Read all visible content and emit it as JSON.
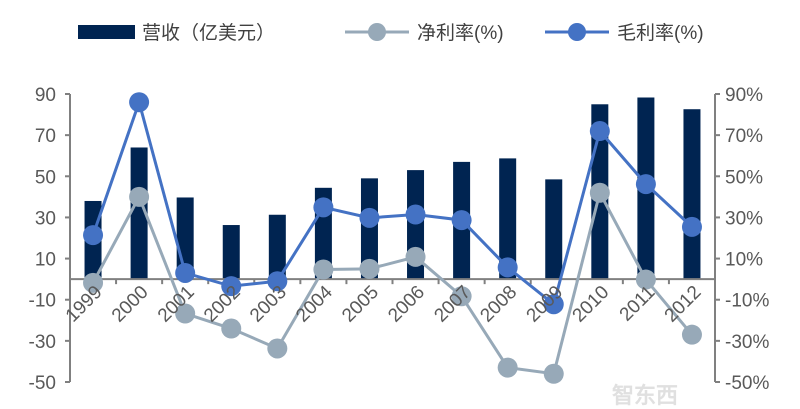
{
  "chart_data": {
    "type": "bar+line",
    "categories": [
      "1999",
      "2000",
      "2001",
      "2002",
      "2003",
      "2004",
      "2005",
      "2006",
      "2007",
      "2008",
      "2009",
      "2010",
      "2011",
      "2012"
    ],
    "series": [
      {
        "name": "营收（亿美元）",
        "kind": "bar",
        "axis": "left",
        "color": "#002451",
        "values": [
          38,
          64,
          39.7,
          26.3,
          31.3,
          44.4,
          49,
          53,
          57,
          58.7,
          48.5,
          85,
          88.3,
          82.6
        ]
      },
      {
        "name": "净利率(%)",
        "kind": "line",
        "axis": "right",
        "color": "#97a9b8",
        "values": [
          -1.8,
          40,
          -16.7,
          -24,
          -33.7,
          4.7,
          5,
          10.8,
          -8.3,
          -43,
          -46,
          42,
          -0.2,
          -27
        ]
      },
      {
        "name": "毛利率(%)",
        "kind": "line",
        "axis": "right",
        "color": "#4472c4",
        "values": [
          21.4,
          86,
          3,
          -3.4,
          -1,
          34.9,
          29.8,
          31.4,
          28.7,
          5.7,
          -12.2,
          72,
          46.2,
          25.4
        ]
      }
    ],
    "left_axis": {
      "ylim": [
        -50,
        90
      ],
      "ticks": [
        "90",
        "70",
        "50",
        "30",
        "10",
        "-10",
        "-30",
        "-50"
      ]
    },
    "right_axis": {
      "ylim": [
        -50,
        90
      ],
      "ticks": [
        "90%",
        "70%",
        "50%",
        "30%",
        "10%",
        "-10%",
        "-30%",
        "-50%"
      ]
    },
    "legend_position": "top",
    "grid": false
  },
  "watermark": "智东西"
}
